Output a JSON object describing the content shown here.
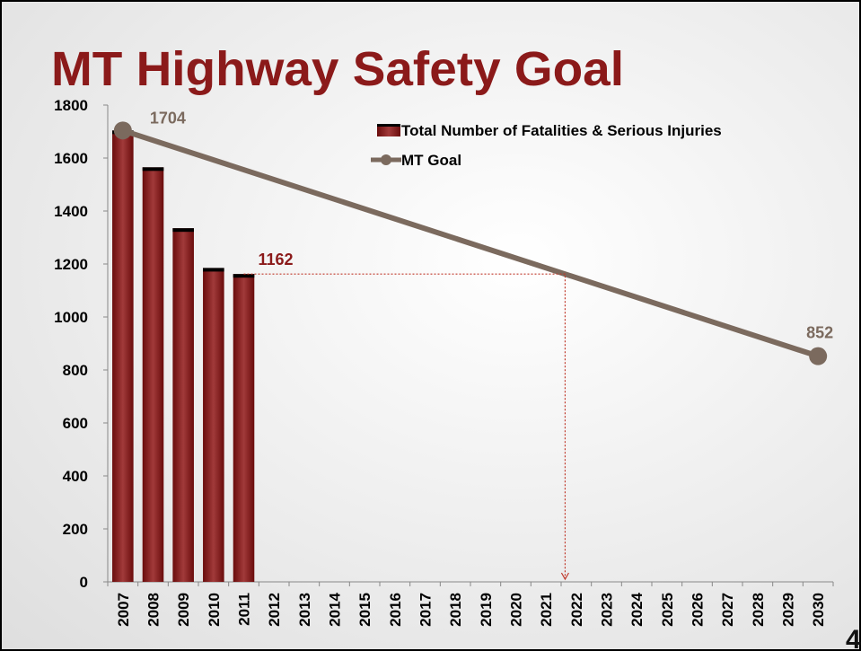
{
  "chart_data": {
    "type": "bar",
    "title": "MT Highway Safety Goal",
    "page_number": "4",
    "categories": [
      "2007",
      "2008",
      "2009",
      "2010",
      "2011",
      "2012",
      "2013",
      "2014",
      "2015",
      "2016",
      "2017",
      "2018",
      "2019",
      "2020",
      "2021",
      "2022",
      "2023",
      "2024",
      "2025",
      "2026",
      "2027",
      "2028",
      "2029",
      "2030"
    ],
    "series": [
      {
        "name": "Total Number of Fatalities & Serious Injuries",
        "color": "#7a1010",
        "values": [
          1704,
          1565,
          1335,
          1185,
          1162,
          null,
          null,
          null,
          null,
          null,
          null,
          null,
          null,
          null,
          null,
          null,
          null,
          null,
          null,
          null,
          null,
          null,
          null,
          null
        ]
      },
      {
        "name": "MT Goal",
        "color": "#7b6a5e",
        "type": "line",
        "x": [
          "2007",
          "2030"
        ],
        "values": [
          1704,
          852
        ]
      }
    ],
    "ylim": [
      0,
      1800
    ],
    "yticks": [
      0,
      200,
      400,
      600,
      800,
      1000,
      1200,
      1400,
      1600,
      1800
    ]
  }
}
